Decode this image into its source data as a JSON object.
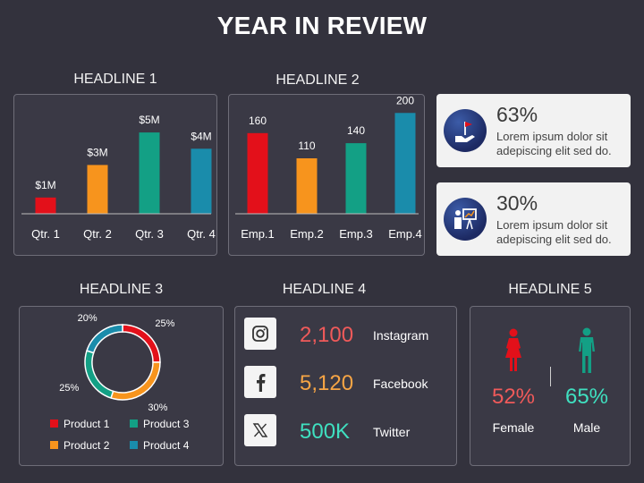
{
  "title": "YEAR IN REVIEW",
  "headlines": [
    "HEADLINE 1",
    "HEADLINE 2",
    "HEADLINE 3",
    "HEADLINE 4",
    "HEADLINE 5"
  ],
  "colors": {
    "red": "#e3101a",
    "orange": "#f7941d",
    "teal": "#13a085",
    "blue": "#1a8cab",
    "pink_text": "#f05a5a",
    "orange_text": "#f7a545",
    "teal_text": "#3fe0c0"
  },
  "chart_data": [
    {
      "type": "bar",
      "categories": [
        "Qtr. 1",
        "Qtr. 2",
        "Qtr. 3",
        "Qtr. 4"
      ],
      "values": [
        1,
        3,
        5,
        4
      ],
      "data_labels": [
        "$1M",
        "$3M",
        "$5M",
        "$4M"
      ],
      "bar_colors": [
        "#e3101a",
        "#f7941d",
        "#13a085",
        "#1a8cab"
      ],
      "ylim": [
        0,
        5.5
      ]
    },
    {
      "type": "bar",
      "categories": [
        "Emp.1",
        "Emp.2",
        "Emp.3",
        "Emp.4"
      ],
      "values": [
        160,
        110,
        140,
        200
      ],
      "data_labels": [
        "160",
        "110",
        "140",
        "200"
      ],
      "bar_colors": [
        "#e3101a",
        "#f7941d",
        "#13a085",
        "#1a8cab"
      ],
      "ylim": [
        0,
        220
      ]
    },
    {
      "type": "pie",
      "categories": [
        "Product 1",
        "Product 2",
        "Product 3",
        "Product 4"
      ],
      "values": [
        25,
        30,
        25,
        20
      ],
      "data_labels": [
        "25%",
        "30%",
        "25%",
        "20%"
      ],
      "colors": [
        "#e3101a",
        "#f7941d",
        "#13a085",
        "#1a8cab"
      ]
    }
  ],
  "cards": [
    {
      "value": "63%",
      "text": "Lorem ipsum dolor sit adepiscing elit sed do.",
      "icon": "flag-hand-icon"
    },
    {
      "value": "30%",
      "text": "Lorem ipsum dolor sit adepiscing elit sed do.",
      "icon": "presentation-icon"
    }
  ],
  "social": [
    {
      "value": "2,100",
      "name": "Instagram",
      "icon": "instagram-icon"
    },
    {
      "value": "5,120",
      "name": "Facebook",
      "icon": "facebook-icon"
    },
    {
      "value": "500K",
      "name": "Twitter",
      "icon": "x-twitter-icon"
    }
  ],
  "gender": {
    "female": {
      "value": "52%",
      "label": "Female",
      "icon": "female-icon"
    },
    "male": {
      "value": "65%",
      "label": "Male",
      "icon": "male-icon"
    }
  }
}
